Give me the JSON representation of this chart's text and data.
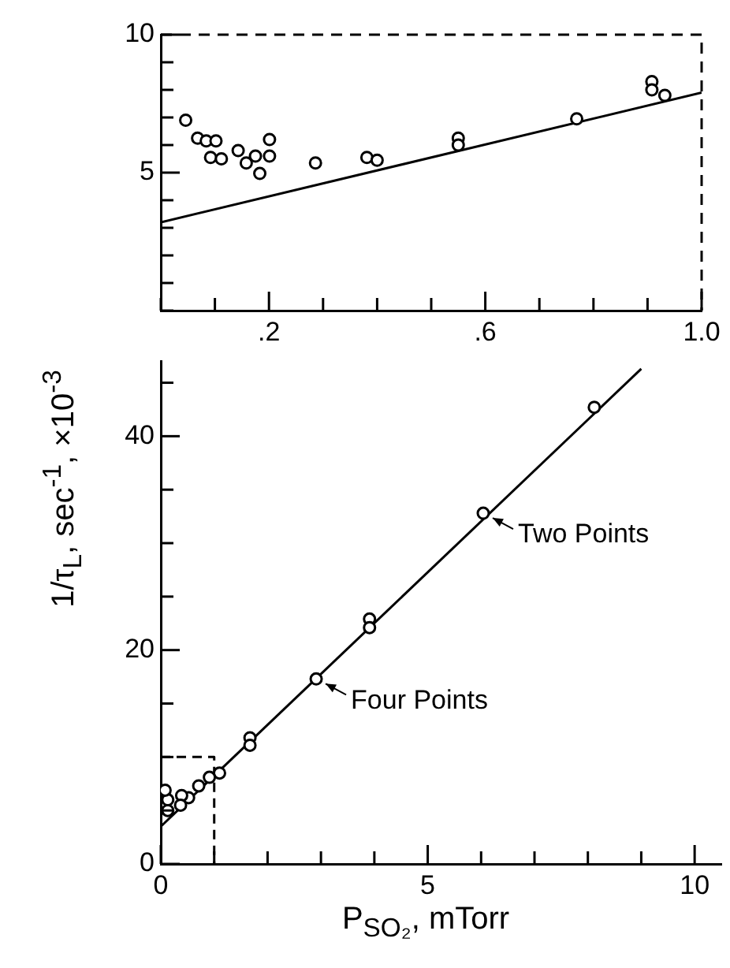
{
  "chart_data": [
    {
      "type": "scatter",
      "xlim": [
        0,
        1
      ],
      "ylim": [
        0,
        10
      ],
      "xticks": [
        {
          "value": 0,
          "label": null
        },
        {
          "value": 0.1,
          "label": null
        },
        {
          "value": 0.2,
          "label": ".2"
        },
        {
          "value": 0.3,
          "label": null
        },
        {
          "value": 0.4,
          "label": null
        },
        {
          "value": 0.5,
          "label": null
        },
        {
          "value": 0.6,
          "label": ".6"
        },
        {
          "value": 0.7,
          "label": null
        },
        {
          "value": 0.8,
          "label": null
        },
        {
          "value": 0.9,
          "label": null
        },
        {
          "value": 1,
          "label": "1.0"
        }
      ],
      "yticks": [
        {
          "value": 0,
          "label": null
        },
        {
          "value": 1,
          "label": null
        },
        {
          "value": 2,
          "label": null
        },
        {
          "value": 3,
          "label": null
        },
        {
          "value": 4,
          "label": null
        },
        5,
        {
          "value": 6,
          "label": null
        },
        {
          "value": 7,
          "label": null
        },
        {
          "value": 8,
          "label": null
        },
        {
          "value": 9,
          "label": null
        },
        10
      ],
      "grid": false,
      "legend": false,
      "series": [
        {
          "marker": "circle",
          "color": "#000000",
          "x": [
            0.046,
            0.068,
            0.084,
            0.102,
            0.092,
            0.112,
            0.143,
            0.158,
            0.175,
            0.183,
            0.201,
            0.201,
            0.286,
            0.381,
            0.4,
            0.55,
            0.55,
            0.769,
            0.908,
            0.908,
            0.932
          ],
          "values": [
            6.9,
            6.25,
            6.15,
            6.15,
            5.55,
            5.5,
            5.8,
            5.35,
            5.6,
            4.97,
            6.2,
            5.6,
            5.35,
            5.55,
            5.45,
            6.25,
            6.0,
            6.95,
            8.3,
            8.0,
            7.8
          ]
        },
        {
          "type": "line",
          "marker": "none",
          "color": "#000000",
          "line_style": "solid",
          "x": [
            0,
            1
          ],
          "values": [
            3.2,
            7.9
          ]
        }
      ]
    },
    {
      "type": "scatter",
      "xlim": [
        0,
        10.5
      ],
      "ylim": [
        0,
        47
      ],
      "xlabel": "P$_{SO₂}$, mTorr",
      "ylabel": "1/τ$_{L}$, sec$^{-1}$, ×10$^{-3}$",
      "xticks": [
        0,
        {
          "value": 1,
          "label": null
        },
        {
          "value": 2,
          "label": null
        },
        {
          "value": 3,
          "label": null
        },
        {
          "value": 4,
          "label": null
        },
        5,
        {
          "value": 6,
          "label": null
        },
        {
          "value": 7,
          "label": null
        },
        {
          "value": 8,
          "label": null
        },
        {
          "value": 9,
          "label": null
        },
        10
      ],
      "yticks": [
        0,
        {
          "value": 5,
          "label": null
        },
        {
          "value": 10,
          "label": null
        },
        {
          "value": 15,
          "label": null
        },
        20,
        {
          "value": 25,
          "label": null
        },
        {
          "value": 30,
          "label": null
        },
        {
          "value": 35,
          "label": null
        },
        40,
        {
          "value": 45,
          "label": null
        }
      ],
      "grid": false,
      "legend": false,
      "annotations": [
        {
          "text": "Two Points",
          "x": 6.04,
          "y": 32.8
        },
        {
          "text": "Four Points",
          "x": 2.91,
          "y": 17.3
        }
      ],
      "series": [
        {
          "marker": "circle",
          "color": "#000000",
          "x": [
            8.12,
            6.04,
            3.91,
            3.91,
            2.91,
            1.67,
            1.67,
            1.1,
            0.91,
            0.71,
            0.52,
            0.39,
            0.37,
            0.13,
            0.13,
            0.08
          ],
          "values": [
            42.7,
            32.8,
            22.9,
            22.1,
            17.3,
            11.8,
            11.1,
            8.5,
            8.1,
            7.3,
            6.2,
            6.4,
            5.5,
            5.0,
            6.0,
            6.9
          ]
        },
        {
          "type": "line",
          "marker": "none",
          "color": "#000000",
          "line_style": "solid",
          "x": [
            0,
            9
          ],
          "values": [
            3.5,
            46.3
          ]
        },
        {
          "type": "line",
          "marker": "none",
          "color": "#000000",
          "line_style": "dashed",
          "x": [
            0,
            1,
            1
          ],
          "values": [
            10,
            10,
            0
          ]
        }
      ]
    }
  ]
}
